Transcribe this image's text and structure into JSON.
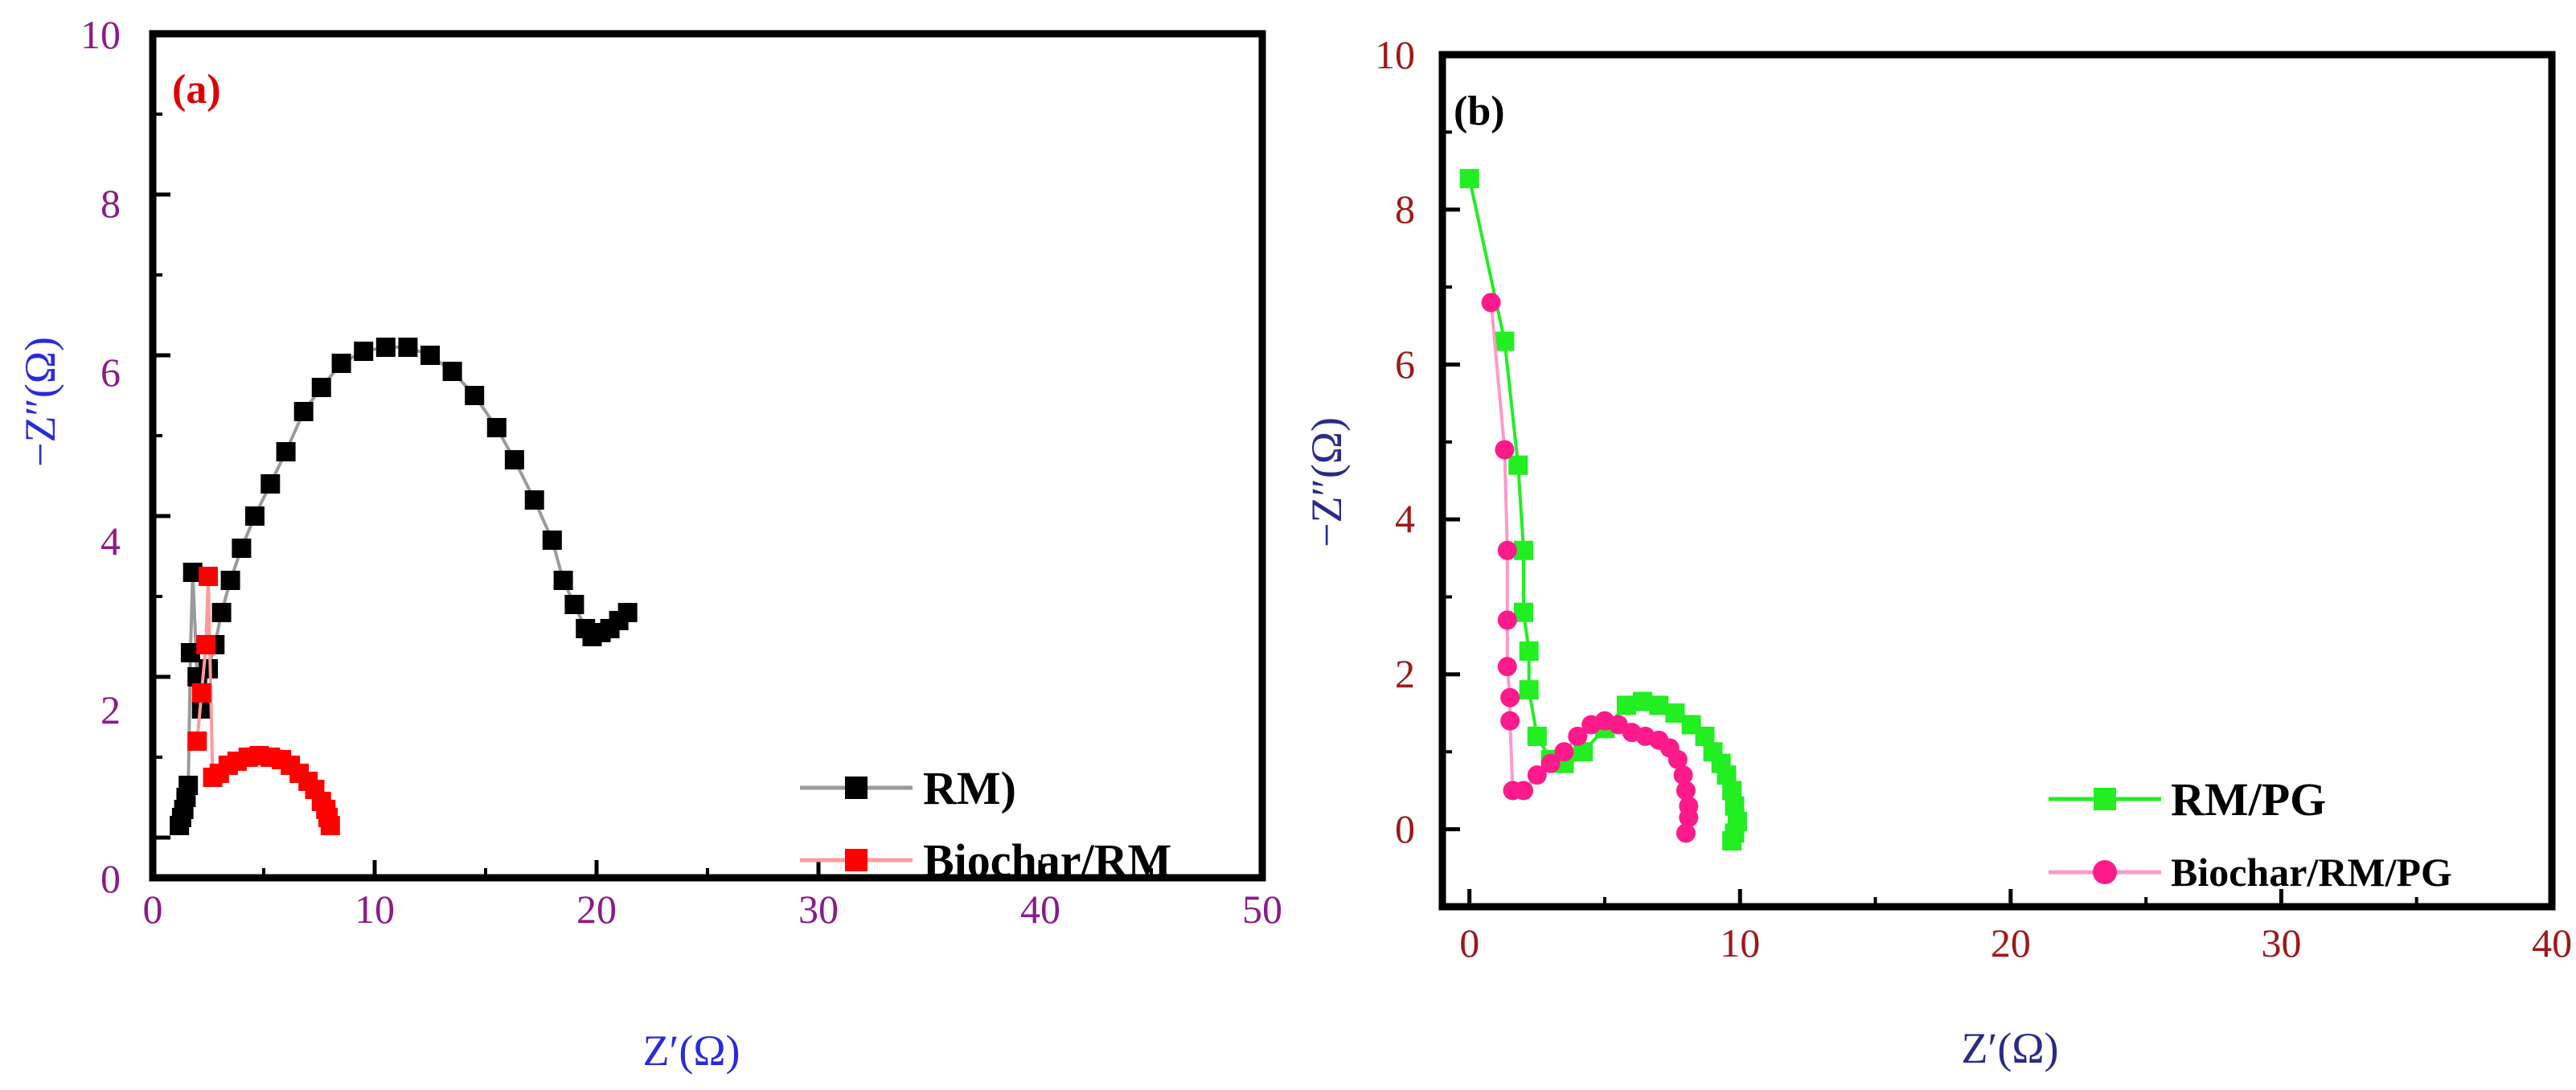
{
  "chart_data": [
    {
      "type": "scatter",
      "panel_label": "(a)",
      "xlabel": "Z′(Ω)",
      "ylabel": "−Z″(Ω)",
      "xlim": [
        0,
        50
      ],
      "ylim": [
        -0.5,
        10
      ],
      "xticks": [
        0,
        10,
        20,
        30,
        40,
        50
      ],
      "yticks": [
        0,
        2,
        4,
        6,
        8,
        10
      ],
      "tick_color": "#8b1a8b",
      "axis_label_color": "#2a2ae0",
      "grid": false,
      "legend_position": "bottom-right",
      "series": [
        {
          "name": "RM)",
          "color": "#000000",
          "line_color": "#9a9a9a",
          "marker": "square",
          "x": [
            1.2,
            1.3,
            1.4,
            1.5,
            1.6,
            1.7,
            1.8,
            2.0,
            2.2,
            2.5,
            2.8,
            3.1,
            3.5,
            4.0,
            4.6,
            5.3,
            6.0,
            6.8,
            7.6,
            8.5,
            9.5,
            10.5,
            11.5,
            12.5,
            13.5,
            14.5,
            15.5,
            16.3,
            17.2,
            18.0,
            18.5,
            19.0,
            19.5,
            19.8,
            20.2,
            20.6,
            21.0,
            21.4
          ],
          "y": [
            0.15,
            0.25,
            0.35,
            0.5,
            0.65,
            2.3,
            3.3,
            2.0,
            1.6,
            2.1,
            2.4,
            2.8,
            3.2,
            3.6,
            4.0,
            4.4,
            4.8,
            5.3,
            5.6,
            5.9,
            6.05,
            6.1,
            6.1,
            6.0,
            5.8,
            5.5,
            5.1,
            4.7,
            4.2,
            3.7,
            3.2,
            2.9,
            2.6,
            2.5,
            2.55,
            2.6,
            2.7,
            2.8
          ]
        },
        {
          "name": "Biochar/RM",
          "color": "#ff0000",
          "line_color": "#ff9a9a",
          "marker": "square",
          "x": [
            2.0,
            2.2,
            2.4,
            2.5,
            2.7,
            3.0,
            3.4,
            3.8,
            4.3,
            4.8,
            5.3,
            5.8,
            6.2,
            6.6,
            7.0,
            7.3,
            7.6,
            7.8,
            7.9,
            8.0
          ],
          "y": [
            1.2,
            1.8,
            2.4,
            3.25,
            0.75,
            0.8,
            0.9,
            0.95,
            1.0,
            1.02,
            1.0,
            0.97,
            0.9,
            0.8,
            0.7,
            0.6,
            0.45,
            0.35,
            0.25,
            0.15
          ]
        }
      ]
    },
    {
      "type": "scatter",
      "panel_label": "(b)",
      "xlabel": "Z′(Ω)",
      "ylabel": "−Z″(Ω)",
      "xlim": [
        -1,
        40
      ],
      "ylim": [
        -1,
        10
      ],
      "xticks": [
        0,
        10,
        20,
        30,
        40
      ],
      "yticks": [
        0,
        2,
        4,
        6,
        8,
        10
      ],
      "tick_color": "#a01818",
      "axis_label_color": "#2a2a8a",
      "grid": false,
      "legend_position": "bottom-right",
      "series": [
        {
          "name": "RM/PG",
          "color": "#22ee22",
          "line_color": "#22ee22",
          "marker": "square",
          "x": [
            0.0,
            1.3,
            1.8,
            2.0,
            2.0,
            2.2,
            2.2,
            2.5,
            3.0,
            3.5,
            4.2,
            5.0,
            5.8,
            6.4,
            7.0,
            7.6,
            8.2,
            8.7,
            9.0,
            9.3,
            9.5,
            9.7,
            9.8,
            9.9,
            9.8,
            9.7
          ],
          "y": [
            8.4,
            6.3,
            4.7,
            3.6,
            2.8,
            2.3,
            1.8,
            1.2,
            0.9,
            0.85,
            1.0,
            1.3,
            1.6,
            1.65,
            1.6,
            1.5,
            1.35,
            1.2,
            1.0,
            0.85,
            0.7,
            0.5,
            0.3,
            0.1,
            -0.05,
            -0.15
          ]
        },
        {
          "name": "Biochar/RM/PG",
          "color": "#ff1a8c",
          "line_color": "#ff99c8",
          "marker": "circle",
          "x": [
            0.8,
            1.3,
            1.4,
            1.4,
            1.4,
            1.5,
            1.5,
            1.6,
            2.0,
            2.5,
            3.0,
            3.5,
            4.0,
            4.5,
            5.0,
            5.5,
            6.0,
            6.5,
            7.0,
            7.4,
            7.7,
            7.9,
            8.0,
            8.1,
            8.1,
            8.0
          ],
          "y": [
            6.8,
            4.9,
            3.6,
            2.7,
            2.1,
            1.7,
            1.4,
            0.5,
            0.5,
            0.7,
            0.85,
            1.0,
            1.2,
            1.35,
            1.4,
            1.35,
            1.25,
            1.2,
            1.15,
            1.05,
            0.9,
            0.7,
            0.5,
            0.3,
            0.15,
            -0.05
          ]
        }
      ]
    }
  ]
}
